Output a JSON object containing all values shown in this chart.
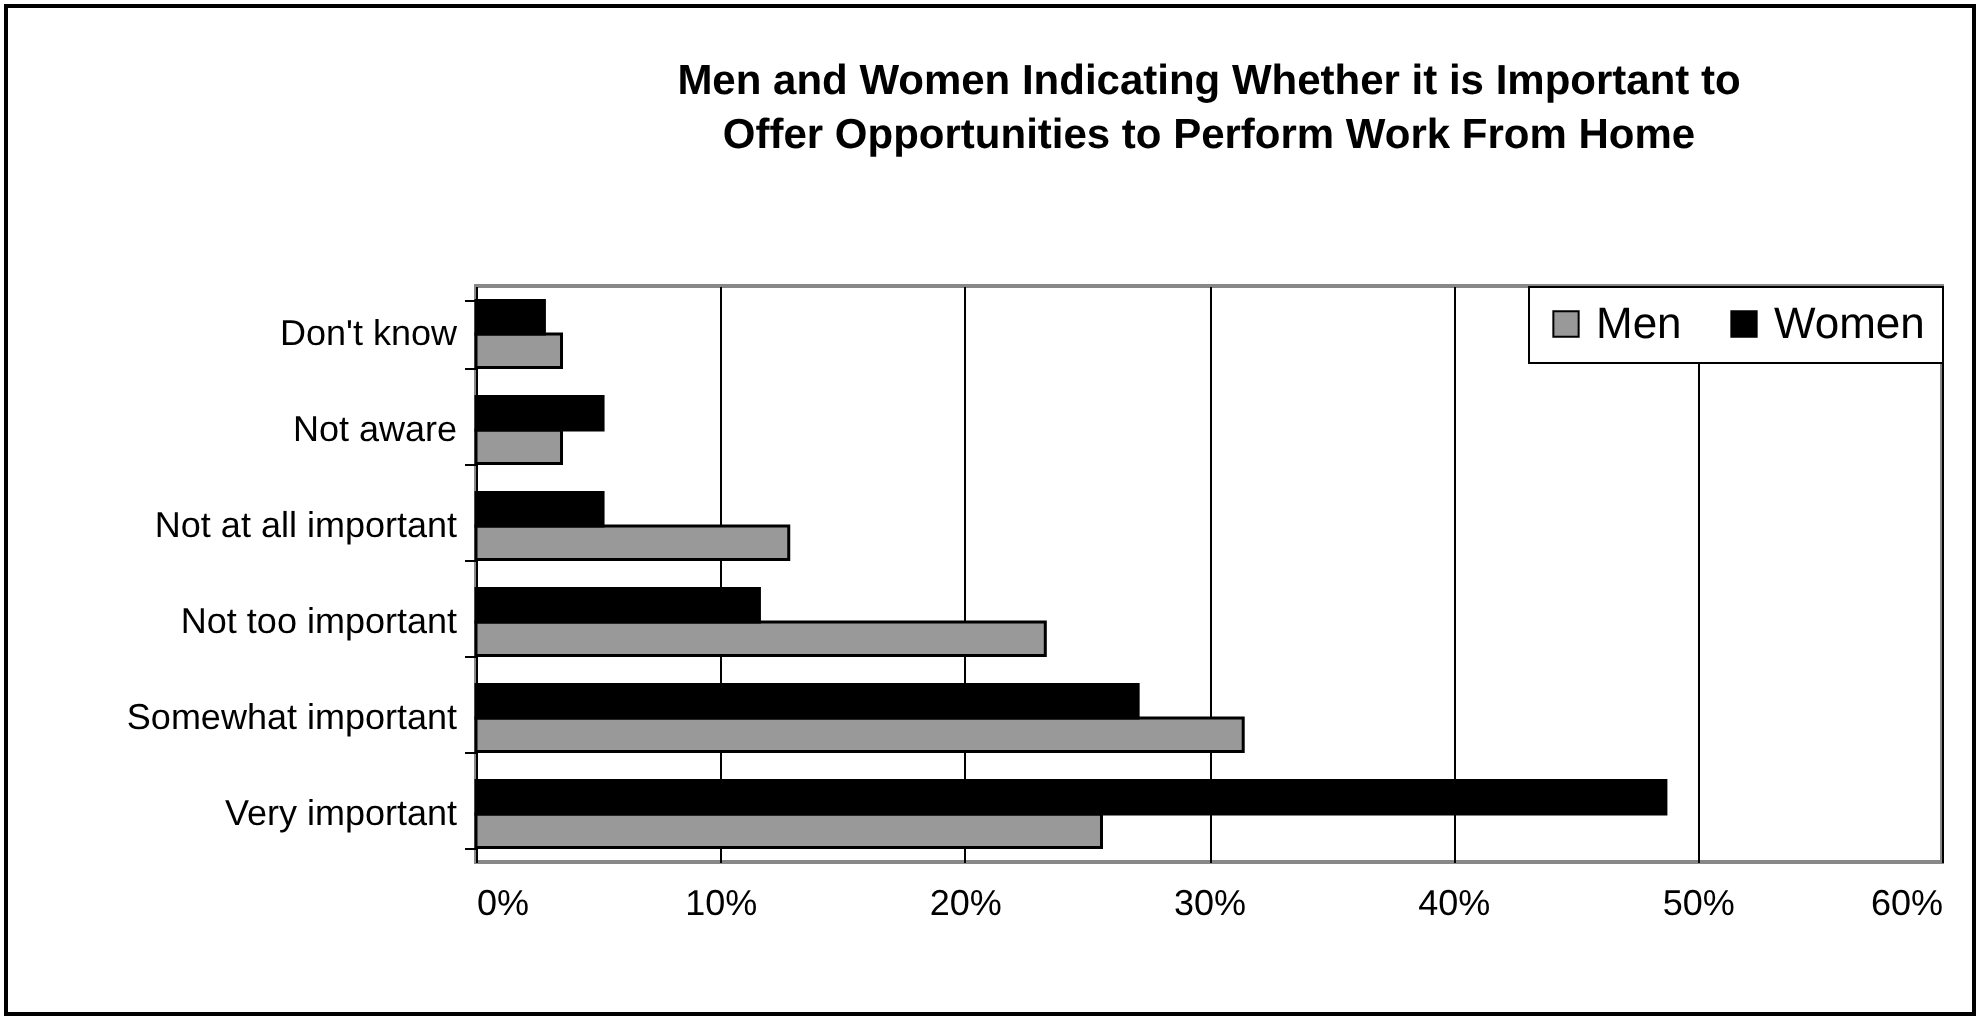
{
  "chart_data": {
    "type": "bar",
    "orientation": "horizontal",
    "title": "Men and Women Indicating Whether it is Important to Offer Opportunities to Perform Work From Home",
    "categories": [
      "Don't know",
      "Not aware",
      "Not at all important",
      "Not too important",
      "Somewhat important",
      "Very important"
    ],
    "series": [
      {
        "name": "Men",
        "color": "#999999",
        "values": [
          3.5,
          3.5,
          12.8,
          23.3,
          31.4,
          25.6
        ]
      },
      {
        "name": "Women",
        "color": "#000000",
        "values": [
          2.8,
          5.2,
          5.2,
          11.6,
          27.1,
          48.7
        ]
      }
    ],
    "xlim": [
      0,
      60
    ],
    "xticks": [
      {
        "value": 0,
        "label": "0%"
      },
      {
        "value": 10,
        "label": "10%"
      },
      {
        "value": 20,
        "label": "20%"
      },
      {
        "value": 30,
        "label": "30%"
      },
      {
        "value": 40,
        "label": "40%"
      },
      {
        "value": 50,
        "label": "50%"
      },
      {
        "value": 60,
        "label": "60%"
      }
    ],
    "grid": "x",
    "legend": "top right"
  }
}
